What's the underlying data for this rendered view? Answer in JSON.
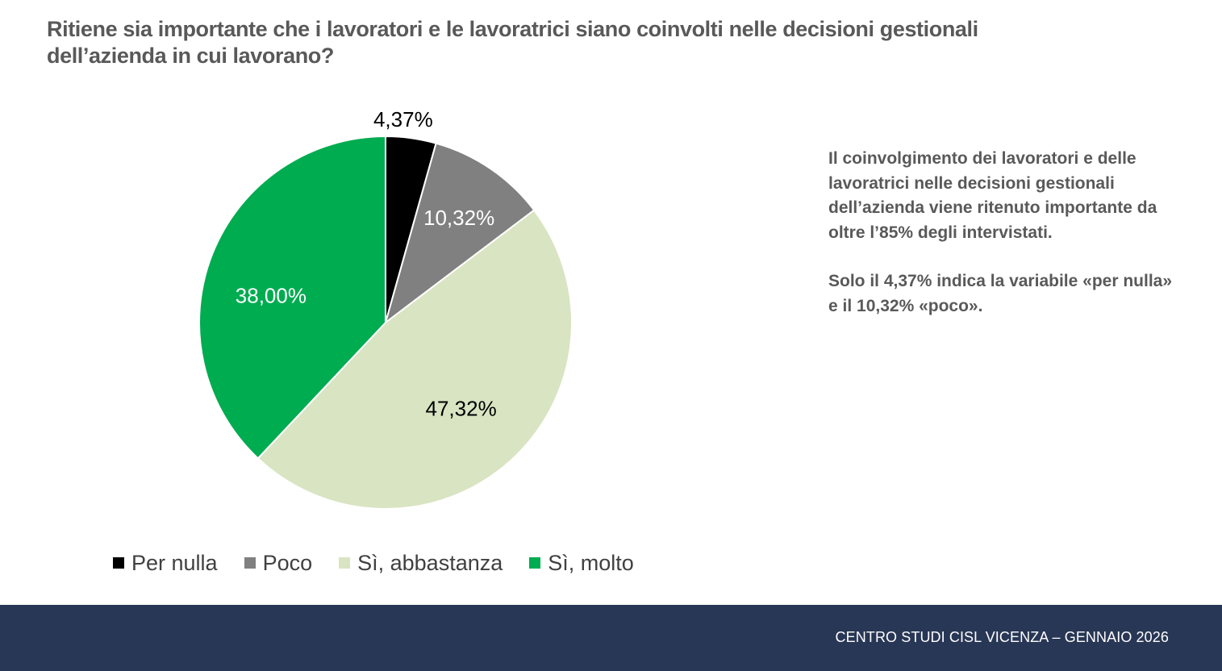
{
  "title": {
    "line1": "Ritiene sia importante che i lavoratori e le lavoratrici siano coinvolti nelle decisioni gestionali",
    "line2": "dell’azienda in cui lavorano?"
  },
  "chart_data": {
    "type": "pie",
    "title": "Ritiene sia importante che i lavoratori e le lavoratrici siano coinvolti nelle decisioni gestionali dell’azienda in cui lavorano?",
    "categories": [
      "Per nulla",
      "Poco",
      "Sì, abbastanza",
      "Sì, molto"
    ],
    "values": [
      4.37,
      10.32,
      47.32,
      38.0
    ],
    "data_labels": [
      "4,37%",
      "10,32%",
      "47,32%",
      "38,00%"
    ],
    "colors": [
      "#000000",
      "#808080",
      "#d9e4c2",
      "#00ac50"
    ],
    "label_colors": [
      "#000000",
      "#ffffff",
      "#000000",
      "#ffffff"
    ],
    "start_angle": "12 o'clock",
    "direction": "clockwise",
    "legend_position": "bottom"
  },
  "legend": {
    "items": [
      {
        "label": "Per nulla",
        "color": "#000000"
      },
      {
        "label": "Poco",
        "color": "#808080"
      },
      {
        "label": "Sì, abbastanza",
        "color": "#d9e4c2"
      },
      {
        "label": "Sì, molto",
        "color": "#00ac50"
      }
    ]
  },
  "side_text": {
    "paragraph1": "Il coinvolgimento dei lavoratori e delle lavoratrici nelle decisioni gestionali dell’azienda viene ritenuto importante da oltre l’85% degli intervistati.",
    "paragraph2": "Solo il 4,37% indica la variabile «per nulla» e il 10,32% «poco»."
  },
  "footer": {
    "text": "CENTRO STUDI CISL VICENZA – GENNAIO 2026"
  }
}
